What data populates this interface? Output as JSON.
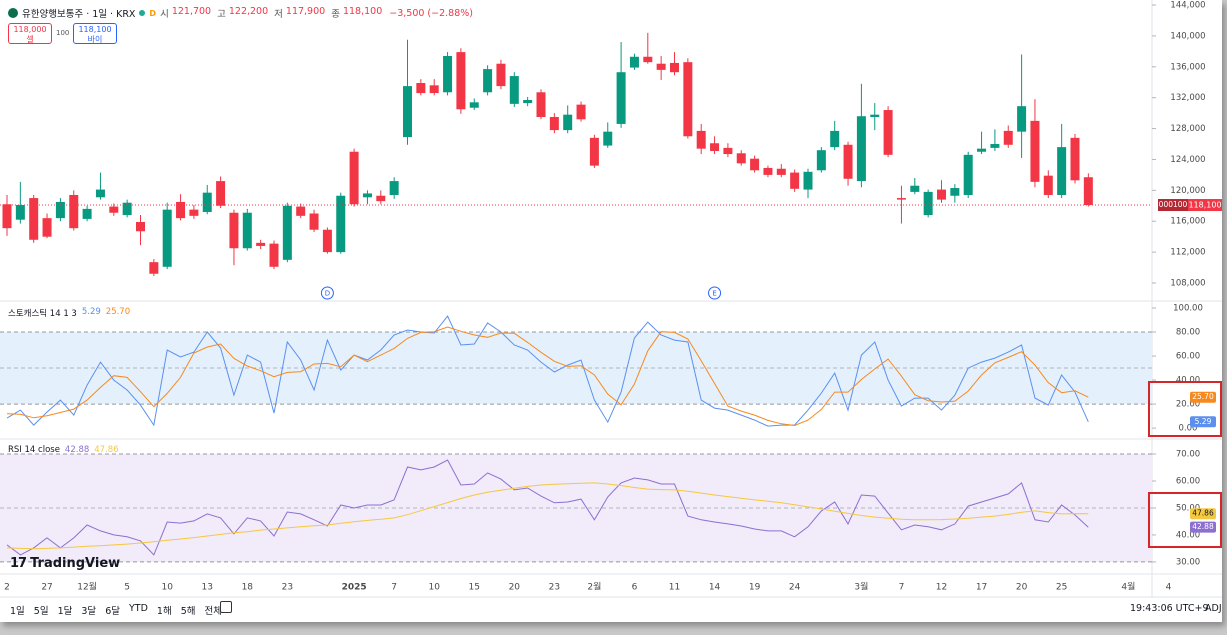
{
  "header": {
    "symbol": "유한양행보통주 · 1일 · KRX",
    "badge": "D",
    "ohlc": [
      [
        "시",
        "121,700"
      ],
      [
        "고",
        "122,200"
      ],
      [
        "저",
        "117,900"
      ],
      [
        "종",
        "118,100"
      ]
    ],
    "change": "−3,500 (−2.88%)",
    "sell": {
      "price": "118,000",
      "label": "셀"
    },
    "spread": "100",
    "buy": {
      "price": "118,100",
      "label": "바이"
    }
  },
  "chart_data": [
    {
      "type": "candlestick",
      "up_color": "#089981",
      "down_color": "#f23645",
      "categories": [
        "2",
        null,
        null,
        "27",
        null,
        null,
        "12월",
        null,
        null,
        "5",
        null,
        null,
        "10",
        null,
        null,
        "13",
        null,
        null,
        "18",
        null,
        null,
        "23",
        null,
        null,
        null,
        null,
        "2025",
        null,
        null,
        "7",
        null,
        null,
        "10",
        null,
        null,
        "15",
        null,
        null,
        "20",
        null,
        null,
        "23",
        null,
        null,
        "2월",
        null,
        null,
        "6",
        null,
        null,
        "11",
        null,
        null,
        "14",
        null,
        null,
        "19",
        null,
        null,
        "24",
        null,
        null,
        null,
        null,
        "3월",
        null,
        null,
        "7",
        null,
        null,
        "12",
        null,
        null,
        "17",
        null,
        null,
        "20",
        null,
        null,
        "25",
        null,
        null,
        null,
        null,
        "4월",
        null,
        null,
        "4"
      ],
      "open": [
        118200,
        116200,
        119000,
        116400,
        116400,
        119400,
        116300,
        119100,
        117900,
        116800,
        115900,
        110700,
        110100,
        118500,
        117500,
        117200,
        121200,
        117100,
        112500,
        113200,
        113100,
        111000,
        117900,
        117000,
        114900,
        112000,
        125000,
        119100,
        119300,
        119400,
        126900,
        133900,
        133600,
        132700,
        137900,
        130700,
        132700,
        136400,
        131200,
        131300,
        132700,
        129500,
        127800,
        131100,
        126800,
        125800,
        128600,
        135900,
        137300,
        136400,
        136500,
        136600,
        127700,
        126100,
        125500,
        124800,
        124100,
        122900,
        122800,
        122300,
        120100,
        122600,
        125600,
        125900,
        121200,
        129500,
        130400,
        119000,
        119800,
        116800,
        120100,
        119300,
        119400,
        125000,
        125500,
        127700,
        127600,
        129000,
        121900,
        119400,
        126800,
        121700,
        null,
        null,
        null,
        null,
        null,
        null
      ],
      "high": [
        119400,
        121100,
        119400,
        117000,
        119000,
        120000,
        118000,
        122300,
        118300,
        118800,
        116800,
        111100,
        118400,
        119500,
        118100,
        120700,
        121800,
        117500,
        117600,
        113600,
        113500,
        118400,
        118300,
        117500,
        115200,
        119700,
        125400,
        120000,
        120000,
        121700,
        139500,
        134400,
        134400,
        137900,
        138400,
        131900,
        136200,
        136900,
        135300,
        132100,
        133100,
        130000,
        131000,
        131500,
        127200,
        128800,
        139200,
        137700,
        140400,
        137400,
        137900,
        137100,
        128600,
        127000,
        126100,
        125200,
        124500,
        123200,
        123400,
        122700,
        122800,
        125600,
        129000,
        126300,
        133800,
        131300,
        130900,
        120600,
        121600,
        120100,
        121300,
        120800,
        125000,
        127600,
        127900,
        128400,
        137600,
        131800,
        122600,
        128600,
        127300,
        122200,
        null,
        null,
        null,
        null,
        null,
        null
      ],
      "low": [
        114100,
        115700,
        113200,
        113800,
        116000,
        114800,
        116000,
        118800,
        116700,
        116500,
        112900,
        108900,
        109800,
        116100,
        116300,
        116900,
        117700,
        110300,
        112200,
        112400,
        109800,
        110700,
        116400,
        114600,
        111800,
        111800,
        117900,
        118200,
        118200,
        118900,
        125900,
        132300,
        132300,
        132300,
        129900,
        130400,
        132300,
        133100,
        130800,
        130900,
        129200,
        127400,
        127400,
        128900,
        122900,
        125500,
        128100,
        135600,
        136400,
        134300,
        134900,
        126700,
        124700,
        124700,
        124300,
        123200,
        122300,
        121700,
        121700,
        119800,
        119000,
        122300,
        125200,
        120600,
        120400,
        127800,
        124300,
        115700,
        119500,
        116500,
        118400,
        118400,
        119000,
        124700,
        125100,
        125500,
        124200,
        120400,
        119000,
        119000,
        120900,
        117900,
        null,
        null,
        null,
        null,
        null,
        null
      ],
      "close": [
        115100,
        118100,
        113600,
        114000,
        118500,
        115100,
        117600,
        120100,
        117100,
        118400,
        114700,
        109200,
        117500,
        116400,
        116700,
        119700,
        118000,
        112500,
        117100,
        112800,
        110100,
        118000,
        116700,
        114900,
        112000,
        119300,
        118200,
        119600,
        118600,
        121200,
        133500,
        132600,
        132600,
        137400,
        130500,
        131400,
        135700,
        133500,
        134800,
        131700,
        129500,
        127800,
        129800,
        129200,
        123200,
        127600,
        135300,
        137300,
        136600,
        135600,
        135300,
        127000,
        125400,
        125100,
        124700,
        123500,
        122600,
        122000,
        122000,
        120200,
        122400,
        125200,
        127700,
        121500,
        129600,
        129800,
        124600,
        118800,
        120600,
        119800,
        118800,
        120300,
        124600,
        125400,
        126000,
        125900,
        130900,
        121100,
        119400,
        125600,
        121300,
        118100,
        null,
        null,
        null,
        null,
        null,
        null
      ],
      "ylim": [
        105800,
        144650
      ],
      "yticks": [
        {
          "value": 108000,
          "label": "108,000"
        },
        {
          "value": 112000,
          "label": "112,000"
        },
        {
          "value": 116000,
          "label": "116,000"
        },
        {
          "value": 120000,
          "label": "120,000"
        },
        {
          "value": 124000,
          "label": "124,000"
        },
        {
          "value": 128000,
          "label": "128,000"
        },
        {
          "value": 132000,
          "label": "132,000"
        },
        {
          "value": 136000,
          "label": "136,000"
        },
        {
          "value": 140000,
          "label": "140,000"
        },
        {
          "value": 144000,
          "label": "144,000"
        }
      ],
      "price_tag": {
        "symbol": "000100",
        "label": "118,100"
      },
      "events": [
        {
          "at": 24,
          "label": "D"
        },
        {
          "at": 53,
          "label": "E"
        }
      ]
    },
    {
      "type": "line",
      "title": "스토캐스틱 14 1 3",
      "band_color": "#e4f1fc",
      "bands": [
        20,
        80
      ],
      "midline": 50,
      "series": [
        {
          "color": "#5b8ff0",
          "last_label": "5.29",
          "values": [
            8.3,
            15.0,
            2.5,
            13.3,
            23.3,
            10.8,
            35.8,
            55.0,
            40.0,
            31.7,
            19.2,
            2.5,
            65.0,
            59.2,
            63.3,
            80.0,
            66.7,
            27.5,
            60.8,
            55.0,
            12.5,
            71.7,
            56.7,
            31.7,
            73.3,
            48.3,
            60.8,
            56.7,
            65.0,
            77.5,
            81.7,
            80.0,
            79.2,
            93.3,
            69.2,
            70.0,
            87.5,
            80.0,
            69.2,
            65.0,
            55.0,
            46.7,
            52.5,
            56.7,
            23.3,
            5.0,
            30.0,
            75.0,
            88.3,
            77.5,
            73.3,
            71.7,
            23.3,
            16.7,
            15.0,
            10.8,
            6.7,
            1.7,
            2.5,
            2.5,
            15.0,
            29.2,
            45.8,
            15.0,
            60.8,
            71.7,
            40.0,
            18.3,
            25.0,
            25.0,
            15.0,
            27.5,
            50.0,
            55.0,
            58.3,
            63.3,
            69.2,
            25.0,
            19.2,
            44.2,
            30.0,
            5.29,
            null,
            null,
            null,
            null,
            null,
            null
          ]
        },
        {
          "color": "#f7891f",
          "last_label": "25.70",
          "values": [
            12.0,
            11.5,
            8.6,
            10.3,
            13.0,
            15.8,
            23.3,
            33.9,
            43.6,
            42.2,
            30.3,
            17.8,
            28.9,
            42.2,
            62.5,
            67.5,
            70.0,
            58.1,
            51.7,
            47.8,
            42.8,
            46.4,
            47.0,
            53.4,
            53.9,
            51.1,
            60.8,
            55.3,
            60.8,
            66.4,
            74.7,
            79.7,
            80.3,
            84.2,
            80.6,
            77.5,
            75.6,
            79.2,
            78.9,
            71.4,
            63.1,
            55.6,
            51.4,
            52.0,
            44.2,
            28.3,
            19.4,
            36.7,
            64.4,
            80.3,
            79.7,
            74.2,
            56.1,
            37.2,
            18.3,
            14.2,
            10.8,
            6.4,
            3.6,
            2.2,
            6.7,
            15.6,
            30.0,
            30.0,
            40.5,
            49.2,
            57.5,
            43.3,
            27.8,
            22.8,
            21.7,
            22.5,
            30.8,
            44.2,
            54.4,
            58.9,
            63.6,
            52.5,
            37.8,
            29.5,
            31.1,
            25.7,
            null,
            null,
            null,
            null,
            null,
            null
          ]
        }
      ],
      "ylim": [
        -7.4,
        105
      ],
      "yticks": [
        {
          "value": 100,
          "label": "100.00"
        },
        {
          "value": 80,
          "label": "80.00"
        },
        {
          "value": 60,
          "label": "60.00"
        },
        {
          "value": 40,
          "label": "40.00"
        },
        {
          "value": 20,
          "label": "20.00"
        },
        {
          "value": 0,
          "label": "0.00"
        }
      ]
    },
    {
      "type": "line",
      "title": "RSI 14 close",
      "band_color": "#f1ebfa",
      "bands": [
        30,
        70
      ],
      "midline": 50,
      "series": [
        {
          "color": "#8c6fd1",
          "last_label": "42.88",
          "values": [
            36.3,
            32.6,
            35.2,
            38.9,
            35.2,
            38.9,
            43.7,
            41.5,
            40.0,
            39.3,
            37.8,
            32.6,
            44.8,
            44.4,
            45.2,
            47.8,
            46.3,
            40.4,
            46.3,
            45.2,
            39.6,
            48.5,
            47.8,
            45.6,
            43.3,
            51.1,
            50.0,
            51.1,
            51.1,
            53.0,
            65.2,
            64.1,
            65.2,
            67.8,
            58.5,
            58.9,
            63.0,
            60.7,
            56.7,
            57.4,
            54.4,
            51.9,
            52.2,
            53.3,
            45.6,
            54.1,
            59.3,
            61.1,
            60.4,
            58.9,
            58.9,
            47.0,
            45.6,
            44.8,
            44.1,
            43.3,
            42.2,
            41.5,
            41.5,
            39.3,
            43.0,
            48.9,
            52.2,
            44.1,
            54.8,
            54.4,
            48.1,
            41.9,
            43.7,
            43.0,
            41.9,
            44.1,
            50.7,
            52.2,
            53.7,
            55.2,
            59.3,
            45.6,
            44.8,
            51.1,
            47.4,
            42.88,
            null,
            null,
            null,
            null,
            null,
            null
          ]
        },
        {
          "color": "#f5c842",
          "last_label": "47.86",
          "values": [
            35.2,
            35.0,
            34.9,
            35.0,
            35.2,
            35.5,
            35.8,
            36.0,
            36.3,
            36.6,
            37.0,
            37.5,
            38.0,
            38.5,
            39.0,
            39.6,
            40.2,
            40.8,
            41.2,
            41.8,
            42.2,
            42.6,
            43.0,
            43.4,
            43.7,
            44.3,
            44.9,
            45.4,
            45.8,
            46.3,
            47.5,
            49.0,
            50.5,
            52.0,
            53.5,
            54.8,
            55.8,
            56.6,
            57.3,
            58.0,
            58.5,
            58.8,
            59.0,
            59.2,
            59.3,
            58.9,
            58.3,
            57.6,
            57.0,
            56.8,
            56.7,
            56.2,
            55.5,
            54.8,
            54.2,
            53.6,
            53.0,
            52.5,
            51.9,
            51.2,
            50.4,
            49.6,
            48.8,
            48.0,
            47.2,
            46.6,
            46.2,
            45.8,
            45.6,
            45.6,
            45.7,
            45.9,
            46.2,
            46.6,
            47.0,
            47.6,
            48.4,
            48.9,
            48.3,
            47.8,
            47.9,
            47.86,
            null,
            null,
            null,
            null,
            null,
            null
          ]
        }
      ],
      "ylim": [
        27,
        75.2
      ],
      "yticks": [
        {
          "value": 70,
          "label": "70.00"
        },
        {
          "value": 60,
          "label": "60.00"
        },
        {
          "value": 50,
          "label": "50.00"
        },
        {
          "value": 40,
          "label": "40.00"
        },
        {
          "value": 30,
          "label": "30.00"
        }
      ]
    }
  ],
  "logo": "TradingView",
  "toolbar": {
    "ranges": [
      "1일",
      "5일",
      "1달",
      "3달",
      "6달",
      "YTD",
      "1해",
      "5해",
      "전체"
    ],
    "time": "19:43:06 UTC+9",
    "adj": "ADJ"
  }
}
